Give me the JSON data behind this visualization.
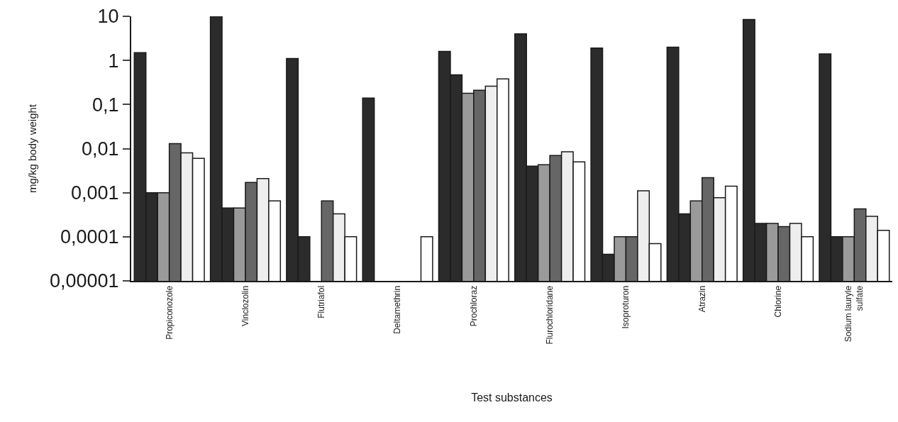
{
  "chart_data": {
    "type": "bar",
    "xlabel": "Test substances",
    "ylabel": "mg/kg body weight",
    "log": "y",
    "categories": [
      "Propiconozole",
      "Vinclozolin",
      "Flutriafol",
      "Deltamethrin",
      "Prochloraz",
      "Flurochloridane",
      "Isoproturon",
      "Atrazin",
      "Chlorine",
      "Sodium lauryle\nsulfate"
    ],
    "ylim": [
      1e-05,
      10
    ],
    "yticks": [
      {
        "value": 1e-05,
        "label": "0,00001"
      },
      {
        "value": 0.0001,
        "label": "0,0001"
      },
      {
        "value": 0.001,
        "label": "0,001"
      },
      {
        "value": 0.01,
        "label": "0,01"
      },
      {
        "value": 0.1,
        "label": "0,1"
      },
      1,
      10
    ],
    "series": [
      {
        "color": "#2b2b2b",
        "values": [
          1.5,
          10,
          1.1,
          0.14,
          1.6,
          4,
          1.9,
          2,
          8.5,
          1.4
        ]
      },
      {
        "color": "#2b2b2b",
        "values": [
          0.001,
          0.00045,
          0.0001,
          null,
          0.47,
          0.004,
          4e-05,
          0.00033,
          0.0002,
          0.0001
        ]
      },
      {
        "color": "#9a9a9a",
        "values": [
          0.001,
          0.00045,
          null,
          null,
          0.18,
          0.0043,
          0.0001,
          0.00065,
          0.0002,
          0.0001
        ]
      },
      {
        "color": "#666666",
        "values": [
          0.013,
          0.0017,
          0.00065,
          null,
          0.21,
          0.007,
          0.0001,
          0.0022,
          0.00017,
          0.00043
        ]
      },
      {
        "color": "#eeeeee",
        "values": [
          0.008,
          0.0021,
          0.00033,
          null,
          0.26,
          0.0085,
          0.0011,
          0.00077,
          0.0002,
          0.00029
        ]
      },
      {
        "color": "#ffffff",
        "values": [
          0.006,
          0.00065,
          0.0001,
          0.0001,
          0.38,
          0.005,
          7e-05,
          0.0014,
          0.0001,
          0.00014
        ]
      }
    ]
  }
}
